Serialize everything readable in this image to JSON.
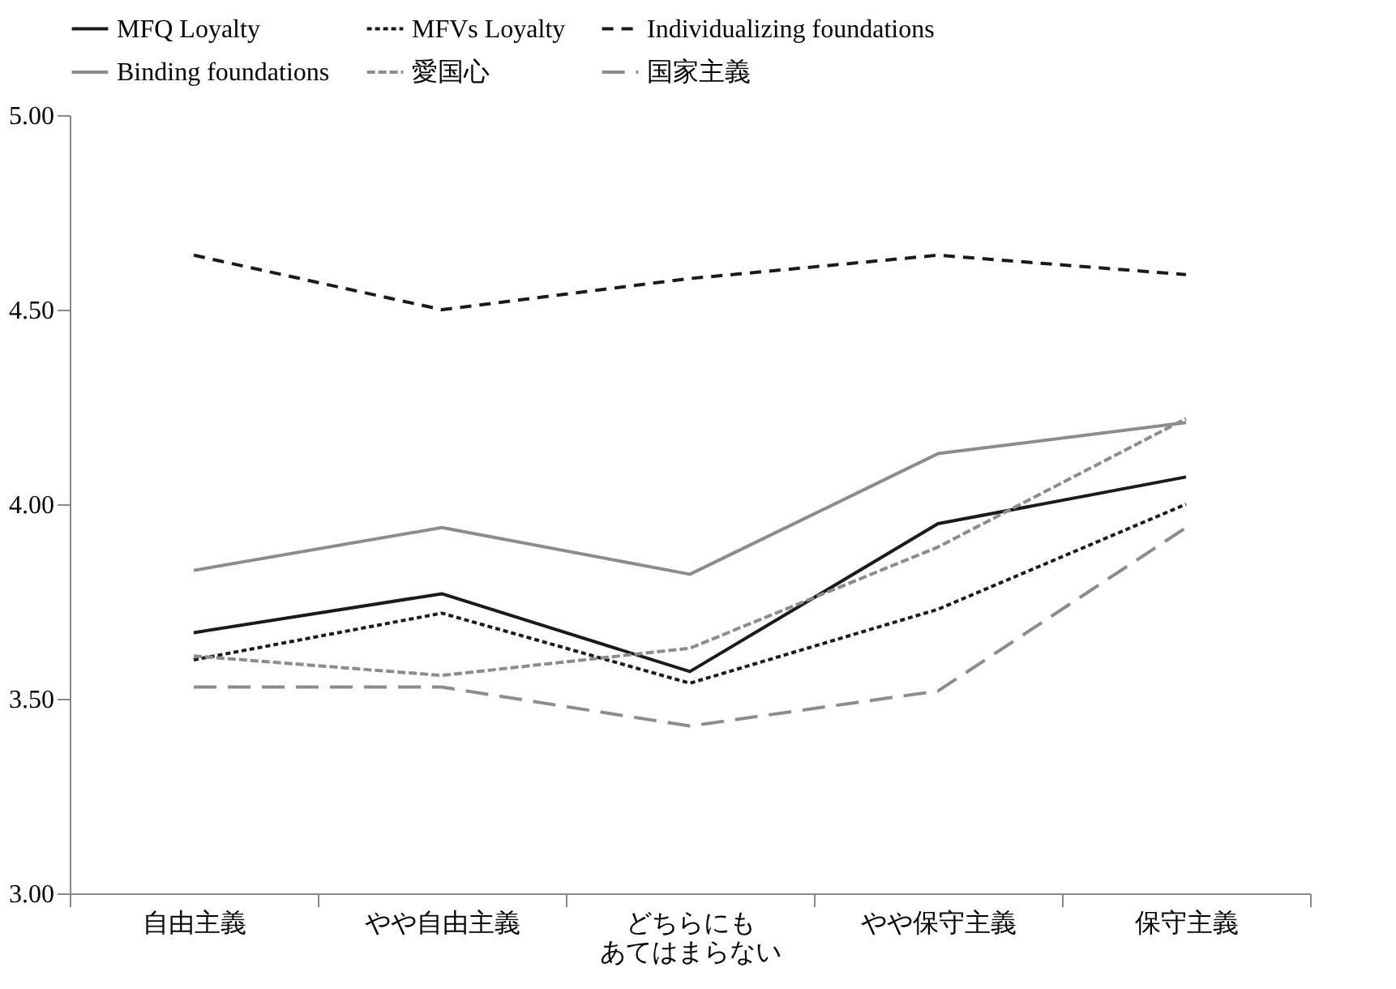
{
  "chart_data": {
    "type": "line",
    "categories": [
      "自由主義",
      "やや自由主義",
      "どちらにもあてはまらない",
      "やや保守主義",
      "保守主義"
    ],
    "series": [
      {
        "name": "MFQ Loyalty",
        "color": "#1a1a1a",
        "line_style": "solid",
        "values": [
          3.67,
          3.77,
          3.57,
          3.95,
          4.07
        ]
      },
      {
        "name": "MFVs Loyalty",
        "color": "#1a1a1a",
        "line_style": "dotted",
        "values": [
          3.6,
          3.72,
          3.54,
          3.73,
          4.0
        ]
      },
      {
        "name": "Individualizing foundations",
        "color": "#1a1a1a",
        "line_style": "dashed",
        "values": [
          4.64,
          4.5,
          4.58,
          4.64,
          4.59
        ]
      },
      {
        "name": "Binding foundations",
        "color": "#8c8c8c",
        "line_style": "solid",
        "values": [
          3.83,
          3.94,
          3.82,
          4.13,
          4.21
        ]
      },
      {
        "name": "愛国心",
        "color": "#8c8c8c",
        "line_style": "dotted",
        "values": [
          3.61,
          3.56,
          3.63,
          3.89,
          4.22
        ]
      },
      {
        "name": "国家主義",
        "color": "#8c8c8c",
        "line_style": "dashed",
        "values": [
          3.53,
          3.53,
          3.43,
          3.52,
          3.94
        ]
      }
    ],
    "ylim": [
      3,
      5
    ],
    "yticks": [
      {
        "value": 3,
        "label": "3.00"
      },
      {
        "value": 3.5,
        "label": "3.50"
      },
      {
        "value": 4,
        "label": "4.00"
      },
      {
        "value": 4.5,
        "label": "4.50"
      },
      {
        "value": 5,
        "label": "5.00"
      }
    ],
    "grid": false,
    "legend": "top",
    "marker": "none"
  }
}
